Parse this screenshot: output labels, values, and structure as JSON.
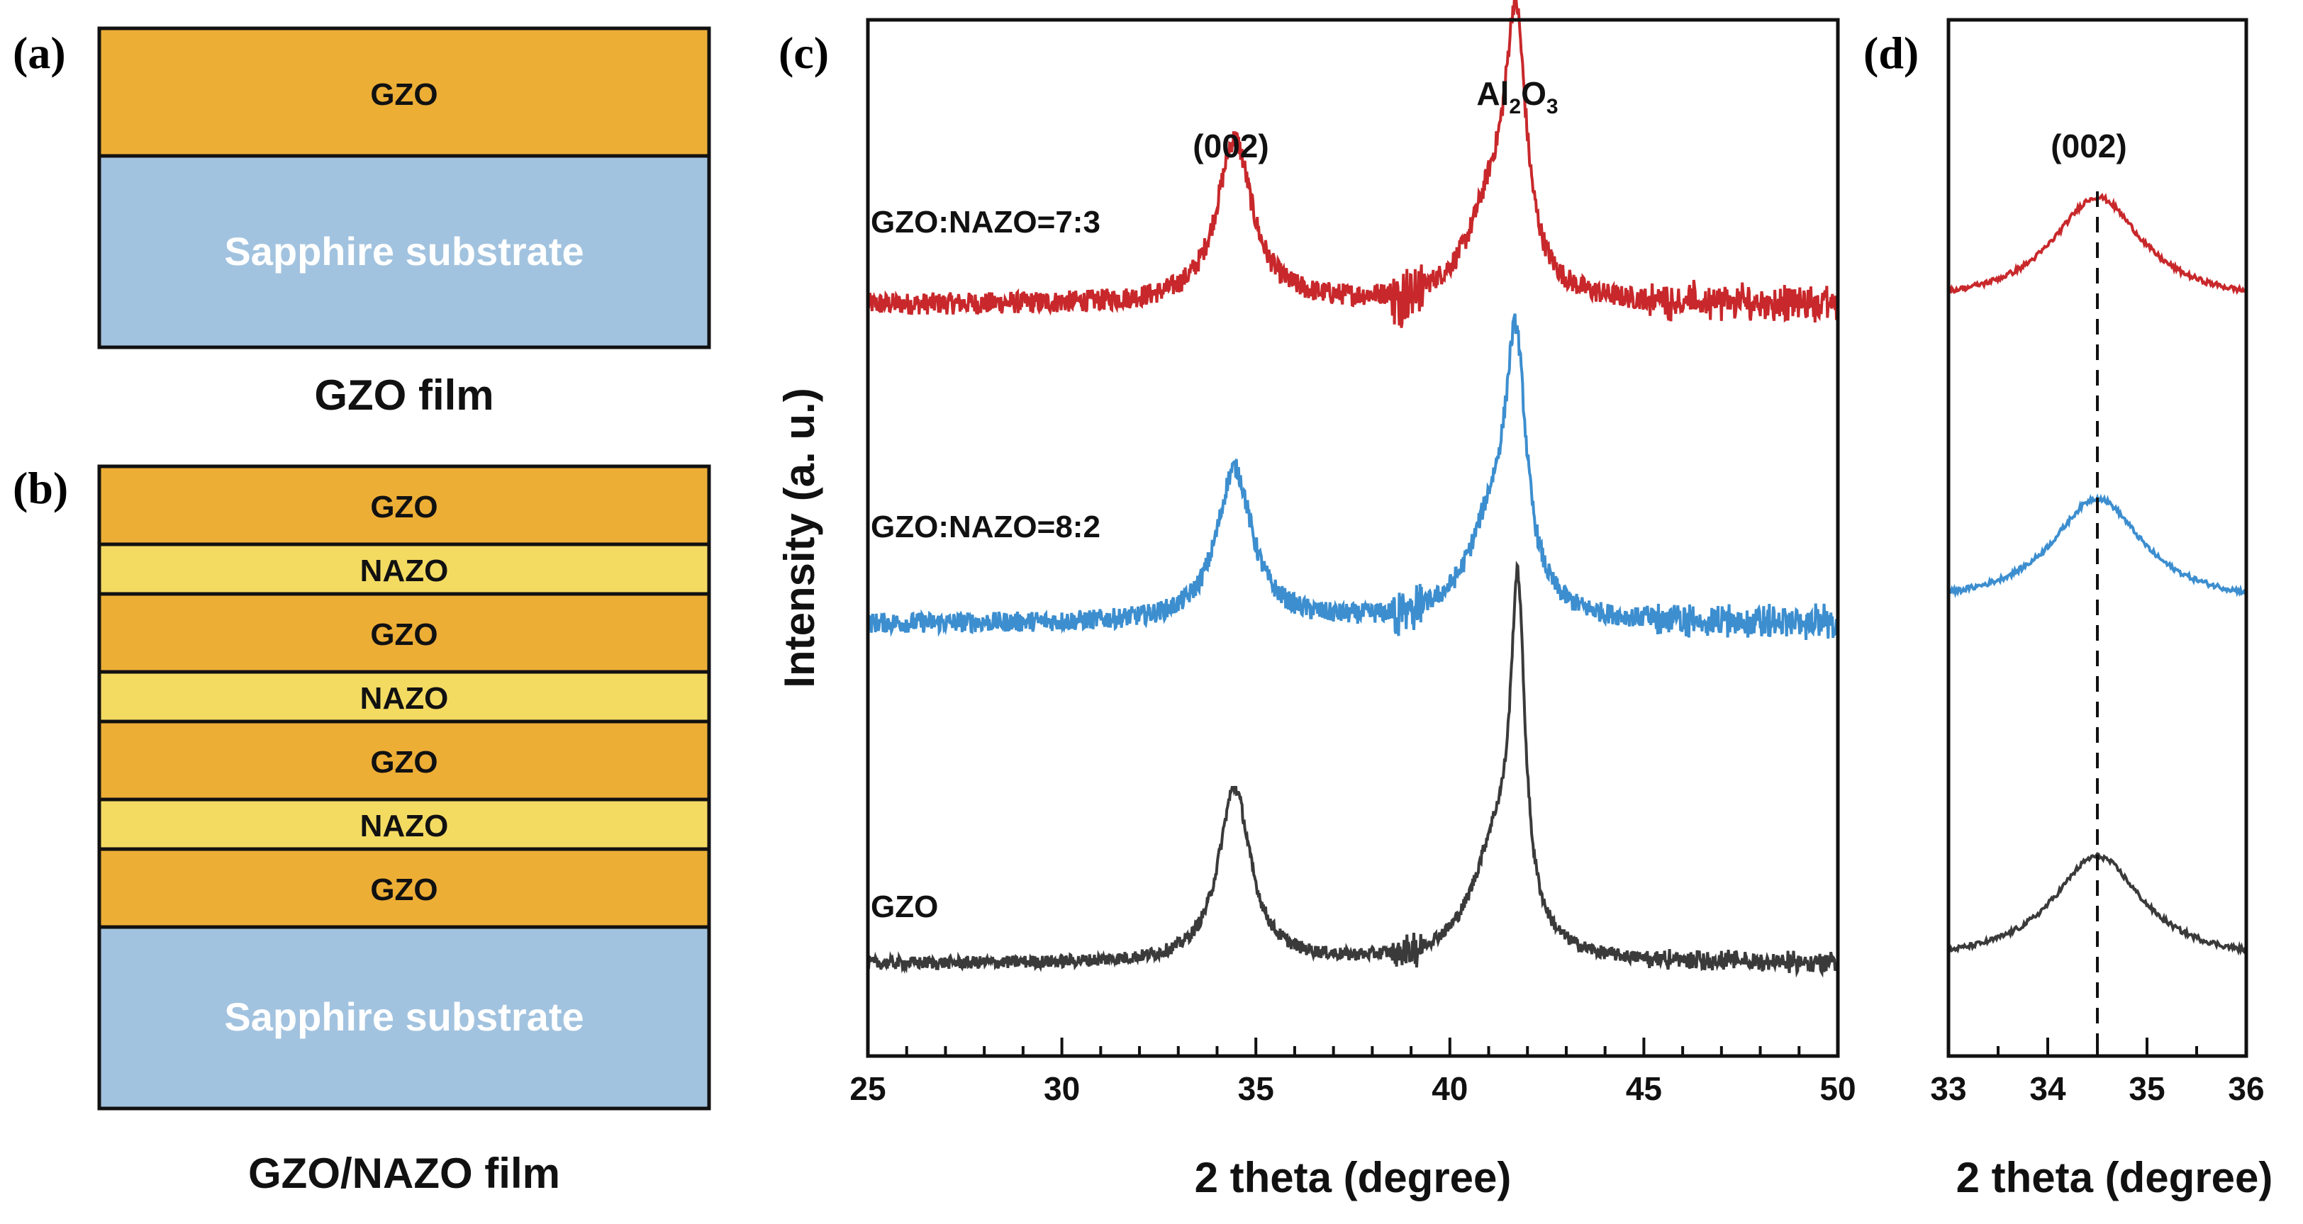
{
  "panels": {
    "a": {
      "label": "(a)",
      "layers": [
        {
          "name": "GZO",
          "color": "#EDAE36"
        },
        {
          "name": "Sapphire substrate",
          "color": "#A2C3DF"
        }
      ],
      "caption": "GZO film"
    },
    "b": {
      "label": "(b)",
      "layers": [
        {
          "name": "GZO",
          "color": "#EDAE36"
        },
        {
          "name": "NAZO",
          "color": "#F3DB62"
        },
        {
          "name": "GZO",
          "color": "#EDAE36"
        },
        {
          "name": "NAZO",
          "color": "#F3DB62"
        },
        {
          "name": "GZO",
          "color": "#EDAE36"
        },
        {
          "name": "NAZO",
          "color": "#F3DB62"
        },
        {
          "name": "GZO",
          "color": "#EDAE36"
        },
        {
          "name": "Sapphire substrate",
          "color": "#A2C3DF"
        }
      ],
      "caption": "GZO/NAZO film"
    },
    "c": {
      "label": "(c)"
    },
    "d": {
      "label": "(d)"
    }
  },
  "chart_data": [
    {
      "id": "c",
      "type": "line",
      "title": "",
      "xlabel": "2 theta (degree)",
      "ylabel": "Intensity (a. u.)",
      "xlim": [
        25,
        50
      ],
      "xticks": [
        "25",
        "30",
        "35",
        "40",
        "45",
        "50"
      ],
      "annotations": [
        {
          "text": "(002)",
          "x": 34.4
        },
        {
          "text": "Al",
          "sub1": "2",
          "mid": "O",
          "sub2": "3",
          "x": 41.7
        }
      ],
      "series": [
        {
          "name": "GZO:NAZO=7:3",
          "color": "#C8282B",
          "baseline": 0.0,
          "peaks": [
            {
              "pos": 34.45,
              "height": 0.8,
              "width": 0.55
            },
            {
              "pos": 41.7,
              "height": 1.2,
              "width": 0.32
            },
            {
              "pos": 41.1,
              "height": 0.45,
              "width": 0.75
            }
          ],
          "noise": 0.12
        },
        {
          "name": "GZO:NAZO=8:2",
          "color": "#3C8ECF",
          "baseline": 0.0,
          "peaks": [
            {
              "pos": 34.45,
              "height": 0.75,
              "width": 0.55
            },
            {
              "pos": 41.7,
              "height": 1.18,
              "width": 0.32
            },
            {
              "pos": 41.1,
              "height": 0.45,
              "width": 0.75
            }
          ],
          "noise": 0.11
        },
        {
          "name": "GZO",
          "color": "#3A3A3A",
          "baseline": 0.0,
          "peaks": [
            {
              "pos": 34.45,
              "height": 0.85,
              "width": 0.5
            },
            {
              "pos": 41.75,
              "height": 1.55,
              "width": 0.22
            },
            {
              "pos": 41.2,
              "height": 0.55,
              "width": 0.75
            }
          ],
          "noise": 0.07
        }
      ]
    },
    {
      "id": "d",
      "type": "line",
      "title": "",
      "xlabel": "2 theta (degree)",
      "ylabel": "",
      "xlim": [
        33,
        36
      ],
      "xticks": [
        "33",
        "34",
        "35",
        "36"
      ],
      "annotations": [
        {
          "text": "(002)",
          "x": 34.5
        }
      ],
      "reference_line": {
        "x": 34.5,
        "style": "dashed"
      },
      "series": [
        {
          "name": "GZO:NAZO=7:3",
          "color": "#C8282B",
          "peak": 34.5
        },
        {
          "name": "GZO:NAZO=8:2",
          "color": "#3C8ECF",
          "peak": 34.5
        },
        {
          "name": "GZO",
          "color": "#3A3A3A",
          "peak": 34.5
        }
      ]
    }
  ]
}
